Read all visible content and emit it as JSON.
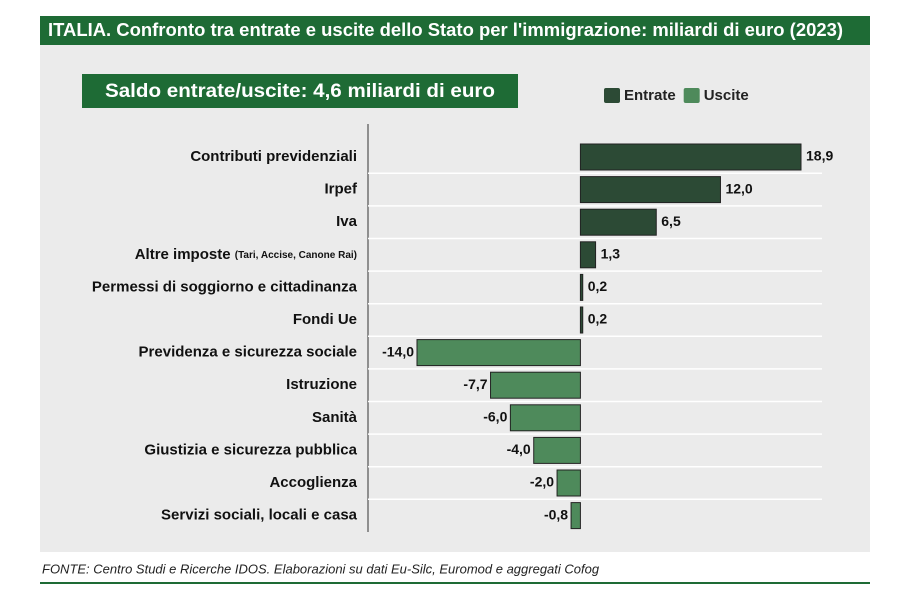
{
  "chart_data": {
    "type": "diverging-bar",
    "title": "ITALIA. Confronto tra entrate e uscite dello Stato per l'immigrazione: miliardi di euro (2023)",
    "subtitle": "Saldo entrate/uscite: 4,6 miliardi di euro",
    "source": "FONTE: Centro Studi e Ricerche IDOS. Elaborazioni su dati Eu-Silc, Euromod e aggregati Cofog",
    "categories": [
      {
        "label": "Contributi previdenziali"
      },
      {
        "label": "Irpef"
      },
      {
        "label": "Iva"
      },
      {
        "label": "Altre imposte",
        "detail": "(Tari, Accise, Canone Rai)"
      },
      {
        "label": "Permessi di soggiorno e cittadinanza"
      },
      {
        "label": "Fondi Ue"
      },
      {
        "label": "Previdenza e sicurezza sociale"
      },
      {
        "label": "Istruzione"
      },
      {
        "label": "Sanità"
      },
      {
        "label": "Giustizia e sicurezza pubblica"
      },
      {
        "label": "Accoglienza"
      },
      {
        "label": "Servizi sociali, locali e casa"
      }
    ],
    "series": [
      {
        "name": "Entrate",
        "color": "#2c4a35",
        "values": [
          18.9,
          12.0,
          6.5,
          1.3,
          0.2,
          0.2,
          null,
          null,
          null,
          null,
          null,
          null
        ],
        "value_labels": [
          "18,9",
          "12,0",
          "6,5",
          "1,3",
          "0,2",
          "0,2",
          null,
          null,
          null,
          null,
          null,
          null
        ]
      },
      {
        "name": "Uscite",
        "color": "#4e8a5b",
        "values": [
          null,
          null,
          null,
          null,
          null,
          null,
          -14.0,
          -7.7,
          -6.0,
          -4.0,
          -2.0,
          -0.8
        ],
        "value_labels": [
          null,
          null,
          null,
          null,
          null,
          null,
          "-14,0",
          "-7,7",
          "-6,0",
          "-4,0",
          "-2,0",
          "-0,8"
        ]
      }
    ],
    "xlim": [
      -14.0,
      18.9
    ],
    "legend": "top-right"
  }
}
